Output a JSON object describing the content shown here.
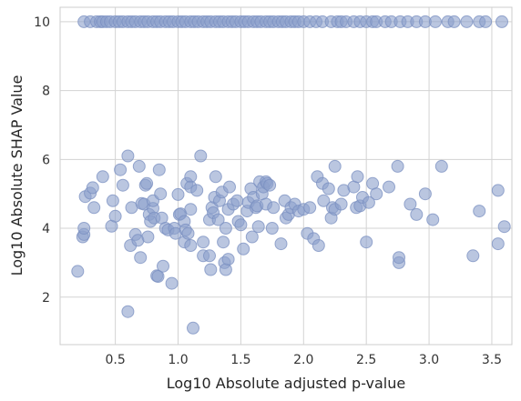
{
  "chart_data": {
    "type": "scatter",
    "title": "",
    "xlabel": "Log10 Absolute adjusted p-value",
    "ylabel": "Log10 Absolute SHAP Value",
    "xlim": [
      0.06,
      3.66
    ],
    "ylim": [
      0.62,
      10.42
    ],
    "xticks": [
      0.5,
      1.0,
      1.5,
      2.0,
      2.5,
      3.0,
      3.5
    ],
    "xtick_labels": [
      "0.5",
      "1.0",
      "1.5",
      "2.0",
      "2.5",
      "3.0",
      "3.5"
    ],
    "yticks": [
      2,
      4,
      6,
      8,
      10
    ],
    "ytick_labels": [
      "2",
      "4",
      "6",
      "8",
      "10"
    ],
    "grid": true,
    "legend": "none",
    "marker_color": "#8ca0cb",
    "points": [
      [
        0.25,
        10
      ],
      [
        0.3,
        10
      ],
      [
        0.35,
        10
      ],
      [
        0.38,
        10
      ],
      [
        0.4,
        10
      ],
      [
        0.43,
        10
      ],
      [
        0.46,
        10
      ],
      [
        0.5,
        10
      ],
      [
        0.53,
        10
      ],
      [
        0.56,
        10
      ],
      [
        0.6,
        10
      ],
      [
        0.63,
        10
      ],
      [
        0.66,
        10
      ],
      [
        0.7,
        10
      ],
      [
        0.73,
        10
      ],
      [
        0.76,
        10
      ],
      [
        0.8,
        10
      ],
      [
        0.83,
        10
      ],
      [
        0.86,
        10
      ],
      [
        0.9,
        10
      ],
      [
        0.93,
        10
      ],
      [
        0.96,
        10
      ],
      [
        1.0,
        10
      ],
      [
        1.03,
        10
      ],
      [
        1.06,
        10
      ],
      [
        1.1,
        10
      ],
      [
        1.13,
        10
      ],
      [
        1.16,
        10
      ],
      [
        1.2,
        10
      ],
      [
        1.23,
        10
      ],
      [
        1.26,
        10
      ],
      [
        1.3,
        10
      ],
      [
        1.33,
        10
      ],
      [
        1.36,
        10
      ],
      [
        1.4,
        10
      ],
      [
        1.43,
        10
      ],
      [
        1.46,
        10
      ],
      [
        1.5,
        10
      ],
      [
        1.53,
        10
      ],
      [
        1.56,
        10
      ],
      [
        1.6,
        10
      ],
      [
        1.63,
        10
      ],
      [
        1.66,
        10
      ],
      [
        1.7,
        10
      ],
      [
        1.73,
        10
      ],
      [
        1.76,
        10
      ],
      [
        1.8,
        10
      ],
      [
        1.83,
        10
      ],
      [
        1.86,
        10
      ],
      [
        1.9,
        10
      ],
      [
        1.93,
        10
      ],
      [
        1.96,
        10
      ],
      [
        2.0,
        10
      ],
      [
        2.05,
        10
      ],
      [
        2.1,
        10
      ],
      [
        2.15,
        10
      ],
      [
        2.22,
        10
      ],
      [
        2.27,
        10
      ],
      [
        2.3,
        10
      ],
      [
        2.34,
        10
      ],
      [
        2.4,
        10
      ],
      [
        2.45,
        10
      ],
      [
        2.5,
        10
      ],
      [
        2.55,
        10
      ],
      [
        2.58,
        10
      ],
      [
        2.65,
        10
      ],
      [
        2.7,
        10
      ],
      [
        2.77,
        10
      ],
      [
        2.83,
        10
      ],
      [
        2.9,
        10
      ],
      [
        2.97,
        10
      ],
      [
        3.05,
        10
      ],
      [
        3.15,
        10
      ],
      [
        3.2,
        10
      ],
      [
        3.3,
        10
      ],
      [
        3.4,
        10
      ],
      [
        3.45,
        10
      ],
      [
        3.58,
        10
      ],
      [
        0.2,
        2.75
      ],
      [
        0.24,
        3.75
      ],
      [
        0.25,
        3.82
      ],
      [
        0.25,
        4.0
      ],
      [
        0.26,
        4.92
      ],
      [
        0.3,
        5.02
      ],
      [
        0.32,
        5.18
      ],
      [
        0.33,
        4.6
      ],
      [
        0.4,
        5.5
      ],
      [
        0.47,
        4.06
      ],
      [
        0.48,
        4.8
      ],
      [
        0.5,
        4.35
      ],
      [
        0.54,
        5.7
      ],
      [
        0.56,
        5.25
      ],
      [
        0.6,
        6.1
      ],
      [
        0.6,
        1.58
      ],
      [
        0.62,
        3.5
      ],
      [
        0.63,
        4.6
      ],
      [
        0.66,
        3.82
      ],
      [
        0.68,
        3.65
      ],
      [
        0.69,
        5.8
      ],
      [
        0.7,
        3.15
      ],
      [
        0.71,
        4.72
      ],
      [
        0.73,
        4.7
      ],
      [
        0.74,
        5.25
      ],
      [
        0.75,
        5.3
      ],
      [
        0.76,
        3.75
      ],
      [
        0.77,
        4.4
      ],
      [
        0.78,
        4.2
      ],
      [
        0.8,
        4.58
      ],
      [
        0.8,
        4.8
      ],
      [
        0.81,
        4.3
      ],
      [
        0.83,
        2.62
      ],
      [
        0.84,
        2.6
      ],
      [
        0.85,
        5.7
      ],
      [
        0.86,
        5.0
      ],
      [
        0.87,
        4.3
      ],
      [
        0.88,
        2.9
      ],
      [
        0.9,
        4.0
      ],
      [
        0.92,
        3.95
      ],
      [
        0.95,
        2.4
      ],
      [
        0.97,
        4.0
      ],
      [
        0.98,
        3.85
      ],
      [
        1.0,
        4.98
      ],
      [
        1.01,
        4.4
      ],
      [
        1.02,
        4.42
      ],
      [
        1.05,
        4.2
      ],
      [
        1.05,
        3.6
      ],
      [
        1.06,
        3.95
      ],
      [
        1.07,
        5.3
      ],
      [
        1.08,
        3.85
      ],
      [
        1.1,
        5.5
      ],
      [
        1.1,
        4.55
      ],
      [
        1.1,
        3.5
      ],
      [
        1.1,
        5.2
      ],
      [
        1.12,
        1.1
      ],
      [
        1.15,
        5.1
      ],
      [
        1.18,
        6.1
      ],
      [
        1.2,
        3.6
      ],
      [
        1.2,
        3.2
      ],
      [
        1.25,
        4.25
      ],
      [
        1.25,
        3.2
      ],
      [
        1.26,
        2.8
      ],
      [
        1.27,
        4.6
      ],
      [
        1.28,
        4.45
      ],
      [
        1.29,
        4.9
      ],
      [
        1.3,
        5.5
      ],
      [
        1.32,
        4.25
      ],
      [
        1.33,
        4.8
      ],
      [
        1.35,
        5.05
      ],
      [
        1.36,
        3.6
      ],
      [
        1.37,
        3.0
      ],
      [
        1.38,
        2.8
      ],
      [
        1.38,
        4.0
      ],
      [
        1.4,
        3.1
      ],
      [
        1.4,
        4.55
      ],
      [
        1.41,
        5.2
      ],
      [
        1.44,
        4.7
      ],
      [
        1.47,
        4.8
      ],
      [
        1.48,
        4.2
      ],
      [
        1.5,
        4.1
      ],
      [
        1.52,
        3.4
      ],
      [
        1.55,
        4.5
      ],
      [
        1.56,
        4.75
      ],
      [
        1.58,
        5.15
      ],
      [
        1.59,
        3.75
      ],
      [
        1.6,
        4.9
      ],
      [
        1.62,
        4.6
      ],
      [
        1.63,
        4.65
      ],
      [
        1.64,
        4.05
      ],
      [
        1.65,
        5.35
      ],
      [
        1.67,
        5.0
      ],
      [
        1.68,
        5.2
      ],
      [
        1.7,
        5.35
      ],
      [
        1.7,
        4.7
      ],
      [
        1.71,
        5.3
      ],
      [
        1.73,
        5.25
      ],
      [
        1.75,
        4.0
      ],
      [
        1.76,
        4.6
      ],
      [
        1.82,
        3.55
      ],
      [
        1.85,
        4.8
      ],
      [
        1.86,
        4.3
      ],
      [
        1.88,
        4.4
      ],
      [
        1.9,
        4.6
      ],
      [
        1.93,
        4.7
      ],
      [
        1.96,
        4.5
      ],
      [
        2.0,
        4.55
      ],
      [
        2.03,
        3.85
      ],
      [
        2.05,
        4.6
      ],
      [
        2.08,
        3.7
      ],
      [
        2.11,
        5.5
      ],
      [
        2.12,
        3.5
      ],
      [
        2.15,
        5.3
      ],
      [
        2.16,
        4.8
      ],
      [
        2.2,
        5.15
      ],
      [
        2.22,
        4.3
      ],
      [
        2.23,
        4.6
      ],
      [
        2.25,
        5.8
      ],
      [
        2.25,
        4.55
      ],
      [
        2.3,
        4.7
      ],
      [
        2.32,
        5.1
      ],
      [
        2.4,
        5.2
      ],
      [
        2.42,
        4.6
      ],
      [
        2.43,
        5.5
      ],
      [
        2.45,
        4.65
      ],
      [
        2.47,
        4.9
      ],
      [
        2.5,
        3.6
      ],
      [
        2.52,
        4.75
      ],
      [
        2.55,
        5.3
      ],
      [
        2.58,
        5.0
      ],
      [
        2.68,
        5.2
      ],
      [
        2.75,
        5.8
      ],
      [
        2.76,
        3.0
      ],
      [
        2.76,
        3.15
      ],
      [
        2.85,
        4.7
      ],
      [
        2.9,
        4.4
      ],
      [
        2.97,
        5.0
      ],
      [
        3.03,
        4.25
      ],
      [
        3.1,
        5.8
      ],
      [
        3.35,
        3.2
      ],
      [
        3.4,
        4.5
      ],
      [
        3.55,
        3.55
      ],
      [
        3.55,
        5.1
      ],
      [
        3.6,
        4.05
      ]
    ]
  }
}
